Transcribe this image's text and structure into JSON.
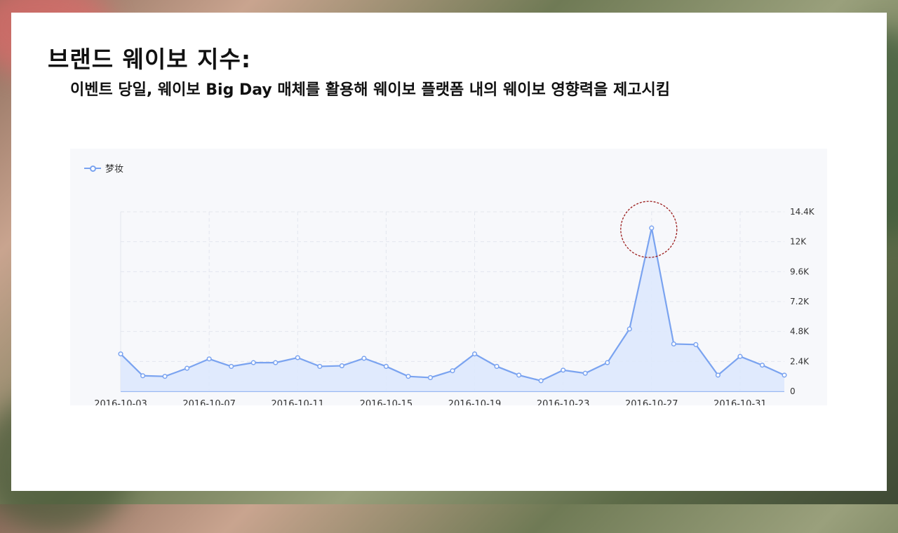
{
  "slide": {
    "title": "브랜드 웨이보 지수:",
    "subtitle": "이벤트 당일, 웨이보 Big Day 매체를 활용해 웨이보 플랫폼 내의 웨이보 영향력을 제고시킴"
  },
  "colors": {
    "line": "#7aa3f0",
    "area": "#dce8fd",
    "highlight_circle": "#9b1c1c"
  },
  "chart_data": {
    "type": "area",
    "title": "",
    "xlabel": "",
    "ylabel": "",
    "legend": {
      "position": "top-left",
      "entries": [
        "梦妆"
      ]
    },
    "y_axis": {
      "position": "right",
      "ylim": [
        0,
        14400
      ],
      "ticks": [
        0,
        2400,
        4800,
        7200,
        9600,
        12000,
        14400
      ],
      "tick_labels": [
        "0",
        "2.4K",
        "4.8K",
        "7.2K",
        "9.6K",
        "12K",
        "14.4K"
      ]
    },
    "x_tick_labels": [
      "2016-10-03",
      "2016-10-07",
      "2016-10-11",
      "2016-10-15",
      "2016-10-19",
      "2016-10-23",
      "2016-10-27",
      "2016-10-31"
    ],
    "grid": true,
    "x": [
      "2016-10-03",
      "2016-10-04",
      "2016-10-05",
      "2016-10-06",
      "2016-10-07",
      "2016-10-08",
      "2016-10-09",
      "2016-10-10",
      "2016-10-11",
      "2016-10-12",
      "2016-10-13",
      "2016-10-14",
      "2016-10-15",
      "2016-10-16",
      "2016-10-17",
      "2016-10-18",
      "2016-10-19",
      "2016-10-20",
      "2016-10-21",
      "2016-10-22",
      "2016-10-23",
      "2016-10-24",
      "2016-10-25",
      "2016-10-26",
      "2016-10-27",
      "2016-10-28",
      "2016-10-29",
      "2016-10-30",
      "2016-10-31",
      "2016-11-01",
      "2016-11-02"
    ],
    "series": [
      {
        "name": "梦妆",
        "values": [
          3000,
          1250,
          1200,
          1850,
          2600,
          2000,
          2300,
          2300,
          2700,
          2000,
          2050,
          2650,
          2000,
          1200,
          1100,
          1650,
          3000,
          2000,
          1300,
          850,
          1700,
          1450,
          2300,
          5000,
          13100,
          3800,
          3750,
          1300,
          2800,
          2100,
          1300
        ]
      }
    ],
    "annotations": [
      {
        "type": "circle",
        "target_x": "2016-10-27"
      }
    ]
  }
}
